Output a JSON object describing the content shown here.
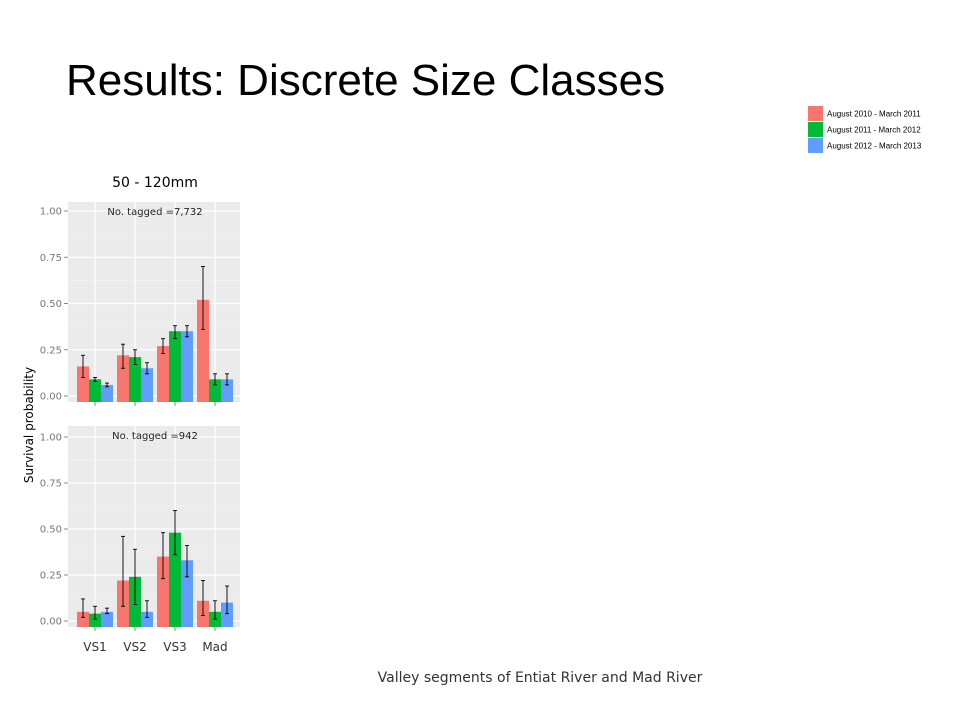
{
  "slide": {
    "title": "Results: Discrete Size Classes"
  },
  "colors": {
    "series": [
      "#F8766D",
      "#00BA38",
      "#619CFF"
    ],
    "panel_bg": "#EBEBEB",
    "grid": "#FFFFFF"
  },
  "chart_data": {
    "type": "bar",
    "subtitle": "50 - 120mm",
    "ylabel": "Survival probability",
    "xlabel": "Valley segments of Entiat River and Mad River",
    "categories": [
      "VS1",
      "VS2",
      "VS3",
      "Mad"
    ],
    "legend": {
      "placement": "top-right",
      "entries": [
        "August 2010 - March 2011",
        "August 2011 - March 2012",
        "August 2012 - March 2013"
      ]
    },
    "yticks": [
      "0.00",
      "0.25",
      "0.50",
      "0.75",
      "1.00"
    ],
    "ylim": [
      0,
      1.05
    ],
    "grid": true,
    "panels": [
      {
        "annotation": "No. tagged =7,732",
        "series": [
          {
            "values": [
              0.16,
              0.22,
              0.27,
              0.52
            ],
            "lower": [
              0.1,
              0.15,
              0.23,
              0.36
            ],
            "upper": [
              0.22,
              0.28,
              0.31,
              0.7
            ]
          },
          {
            "values": [
              0.09,
              0.21,
              0.35,
              0.09
            ],
            "lower": [
              0.08,
              0.17,
              0.31,
              0.06
            ],
            "upper": [
              0.1,
              0.25,
              0.38,
              0.12
            ]
          },
          {
            "values": [
              0.06,
              0.15,
              0.35,
              0.09
            ],
            "lower": [
              0.05,
              0.12,
              0.32,
              0.06
            ],
            "upper": [
              0.07,
              0.18,
              0.38,
              0.12
            ]
          }
        ]
      },
      {
        "annotation": "No. tagged =942",
        "series": [
          {
            "values": [
              0.05,
              0.22,
              0.35,
              0.11
            ],
            "lower": [
              0.02,
              0.08,
              0.23,
              0.03
            ],
            "upper": [
              0.12,
              0.46,
              0.48,
              0.22
            ]
          },
          {
            "values": [
              0.04,
              0.24,
              0.48,
              0.05
            ],
            "lower": [
              0.01,
              0.09,
              0.36,
              0.01
            ],
            "upper": [
              0.08,
              0.39,
              0.6,
              0.11
            ]
          },
          {
            "values": [
              0.05,
              0.05,
              0.33,
              0.1
            ],
            "lower": [
              0.04,
              0.02,
              0.24,
              0.04
            ],
            "upper": [
              0.07,
              0.11,
              0.41,
              0.19
            ]
          }
        ]
      }
    ]
  }
}
